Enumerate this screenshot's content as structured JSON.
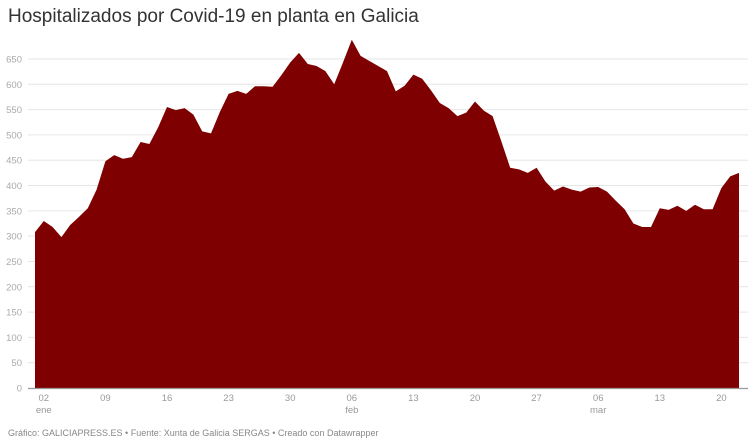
{
  "title": "Hospitalizados por Covid-19 en planta en Galicia",
  "footer": "Gráfico: GALICIAPRESS.ES • Fuente: Xunta de Galicia SERGAS • Creado con Datawrapper",
  "colors": {
    "area": "#7f0000",
    "grid": "#e6e6e6",
    "axis": "#999999",
    "tick_text": "#aaaaaa"
  },
  "chart_data": {
    "type": "area",
    "title": "Hospitalizados por Covid-19 en planta en Galicia",
    "xlabel": "",
    "ylabel": "",
    "ylim": [
      0,
      700
    ],
    "grid": true,
    "y_ticks": [
      0,
      50,
      100,
      150,
      200,
      250,
      300,
      350,
      400,
      450,
      500,
      550,
      600,
      650
    ],
    "x_ticks": [
      {
        "day": 1,
        "label": "02",
        "sub": "ene"
      },
      {
        "day": 8,
        "label": "09",
        "sub": ""
      },
      {
        "day": 15,
        "label": "16",
        "sub": ""
      },
      {
        "day": 22,
        "label": "23",
        "sub": ""
      },
      {
        "day": 29,
        "label": "30",
        "sub": ""
      },
      {
        "day": 36,
        "label": "06",
        "sub": "feb"
      },
      {
        "day": 43,
        "label": "13",
        "sub": ""
      },
      {
        "day": 50,
        "label": "20",
        "sub": ""
      },
      {
        "day": 57,
        "label": "27",
        "sub": ""
      },
      {
        "day": 64,
        "label": "06",
        "sub": "mar"
      },
      {
        "day": 71,
        "label": "13",
        "sub": ""
      },
      {
        "day": 78,
        "label": "20",
        "sub": ""
      }
    ],
    "x_start": "2021-01-01",
    "x_end": "2021-03-22",
    "series": [
      {
        "name": "Hospitalizados en planta",
        "values": [
          308,
          330,
          318,
          298,
          322,
          338,
          355,
          392,
          448,
          460,
          453,
          456,
          486,
          482,
          515,
          555,
          549,
          553,
          540,
          507,
          503,
          545,
          581,
          587,
          581,
          596,
          596,
          595,
          618,
          643,
          662,
          640,
          636,
          626,
          600,
          643,
          688,
          656,
          646,
          636,
          626,
          586,
          597,
          619,
          611,
          588,
          563,
          553,
          537,
          544,
          566,
          548,
          537,
          487,
          435,
          432,
          425,
          435,
          408,
          390,
          398,
          392,
          388,
          396,
          397,
          388,
          370,
          353,
          325,
          318,
          318,
          355,
          352,
          360,
          350,
          362,
          353,
          353,
          395,
          418,
          425
        ]
      }
    ]
  }
}
